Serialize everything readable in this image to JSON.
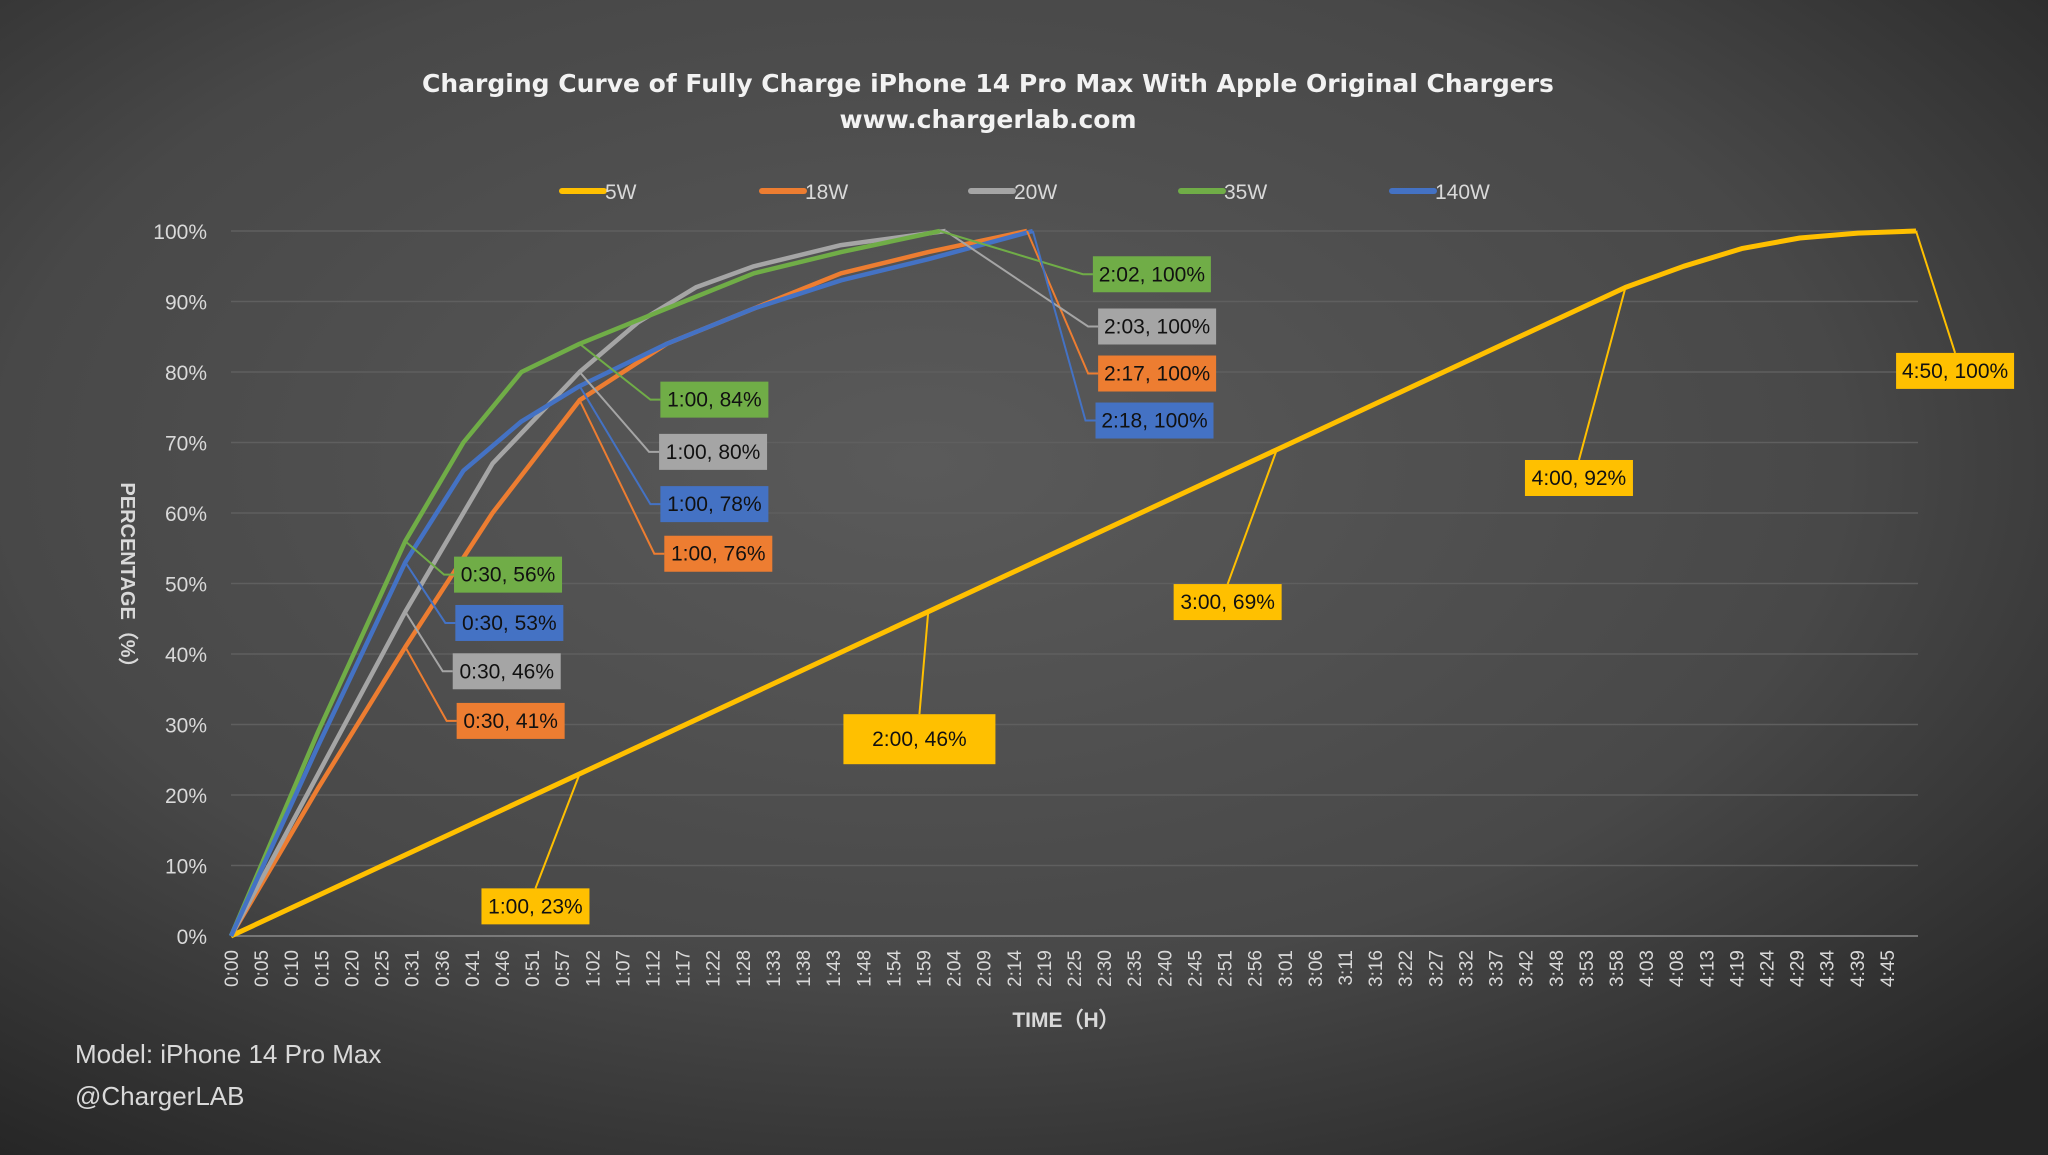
{
  "chart_data": {
    "type": "line",
    "title": "Charging Curve of Fully Charge iPhone 14 Pro Max With Apple Original Chargers",
    "subtitle": "www.chargerlab.com",
    "xlabel": "TIME（H）",
    "ylabel": "PERCENTAGE（%）",
    "xlim_minutes": [
      0,
      290
    ],
    "ylim": [
      0,
      100
    ],
    "grid": true,
    "legend_position": "top",
    "y_ticks": [
      0,
      10,
      20,
      30,
      40,
      50,
      60,
      70,
      80,
      90,
      100
    ],
    "y_tick_labels": [
      "0%",
      "10%",
      "20%",
      "30%",
      "40%",
      "50%",
      "60%",
      "70%",
      "80%",
      "90%",
      "100%"
    ],
    "x_tick_labels": [
      "0:00",
      "0:05",
      "0:10",
      "0:15",
      "0:20",
      "0:25",
      "0:31",
      "0:36",
      "0:41",
      "0:46",
      "0:51",
      "0:57",
      "1:02",
      "1:07",
      "1:12",
      "1:17",
      "1:22",
      "1:28",
      "1:33",
      "1:38",
      "1:43",
      "1:48",
      "1:54",
      "1:59",
      "2:04",
      "2:09",
      "2:14",
      "2:19",
      "2:25",
      "2:30",
      "2:35",
      "2:40",
      "2:45",
      "2:51",
      "2:56",
      "3:01",
      "3:06",
      "3:11",
      "3:16",
      "3:22",
      "3:27",
      "3:32",
      "3:37",
      "3:42",
      "3:48",
      "3:53",
      "3:58",
      "4:03",
      "4:08",
      "4:13",
      "4:19",
      "4:24",
      "4:29",
      "4:34",
      "4:39",
      "4:45"
    ],
    "series": [
      {
        "name": "5W",
        "color": "#FFC000",
        "points": [
          [
            0,
            0
          ],
          [
            60,
            23
          ],
          [
            120,
            46
          ],
          [
            180,
            69
          ],
          [
            240,
            92
          ],
          [
            250,
            95
          ],
          [
            260,
            97.5
          ],
          [
            270,
            99
          ],
          [
            280,
            99.7
          ],
          [
            290,
            100
          ]
        ],
        "labels": [
          {
            "text": "1:00, 23%",
            "at": [
              60,
              23
            ]
          },
          {
            "text": "2:00, 46%",
            "at": [
              120,
              46
            ]
          },
          {
            "text": "3:00, 69%",
            "at": [
              180,
              69
            ]
          },
          {
            "text": "4:00, 92%",
            "at": [
              240,
              92
            ]
          },
          {
            "text": "4:50, 100%",
            "at": [
              290,
              100
            ]
          }
        ]
      },
      {
        "name": "18W",
        "color": "#ED7D31",
        "points": [
          [
            0,
            0
          ],
          [
            15,
            21
          ],
          [
            30,
            41
          ],
          [
            45,
            60
          ],
          [
            60,
            76
          ],
          [
            75,
            84
          ],
          [
            90,
            89
          ],
          [
            105,
            94
          ],
          [
            120,
            97
          ],
          [
            137,
            100
          ]
        ],
        "labels": [
          {
            "text": "0:30, 41%",
            "at": [
              30,
              41
            ]
          },
          {
            "text": "1:00, 76%",
            "at": [
              60,
              76
            ]
          },
          {
            "text": "2:17, 100%",
            "at": [
              137,
              100
            ]
          }
        ]
      },
      {
        "name": "20W",
        "color": "#A5A5A5",
        "points": [
          [
            0,
            0
          ],
          [
            15,
            23
          ],
          [
            30,
            46
          ],
          [
            45,
            67
          ],
          [
            60,
            80
          ],
          [
            70,
            87
          ],
          [
            80,
            92
          ],
          [
            90,
            95
          ],
          [
            105,
            98
          ],
          [
            123,
            100
          ]
        ],
        "labels": [
          {
            "text": "0:30, 46%",
            "at": [
              30,
              46
            ]
          },
          {
            "text": "1:00, 80%",
            "at": [
              60,
              80
            ]
          },
          {
            "text": "2:03, 100%",
            "at": [
              123,
              100
            ]
          }
        ]
      },
      {
        "name": "35W",
        "color": "#70AD47",
        "points": [
          [
            0,
            0
          ],
          [
            15,
            29
          ],
          [
            30,
            56
          ],
          [
            40,
            70
          ],
          [
            50,
            80
          ],
          [
            60,
            84
          ],
          [
            75,
            89
          ],
          [
            90,
            94
          ],
          [
            105,
            97
          ],
          [
            122,
            100
          ]
        ],
        "labels": [
          {
            "text": "0:30, 56%",
            "at": [
              30,
              56
            ]
          },
          {
            "text": "1:00, 84%",
            "at": [
              60,
              84
            ]
          },
          {
            "text": "2:02, 100%",
            "at": [
              122,
              100
            ]
          }
        ]
      },
      {
        "name": "140W",
        "color": "#4472C4",
        "points": [
          [
            0,
            0
          ],
          [
            15,
            27
          ],
          [
            30,
            53
          ],
          [
            40,
            66
          ],
          [
            50,
            73
          ],
          [
            60,
            78
          ],
          [
            75,
            84
          ],
          [
            90,
            89
          ],
          [
            105,
            93
          ],
          [
            120,
            96
          ],
          [
            138,
            100
          ]
        ],
        "labels": [
          {
            "text": "0:30, 53%",
            "at": [
              30,
              53
            ]
          },
          {
            "text": "1:00, 78%",
            "at": [
              60,
              78
            ]
          },
          {
            "text": "2:18, 100%",
            "at": [
              138,
              100
            ]
          }
        ]
      }
    ]
  },
  "footer": {
    "model": "Model: iPhone 14 Pro Max",
    "credit": "@ChargerLAB"
  }
}
